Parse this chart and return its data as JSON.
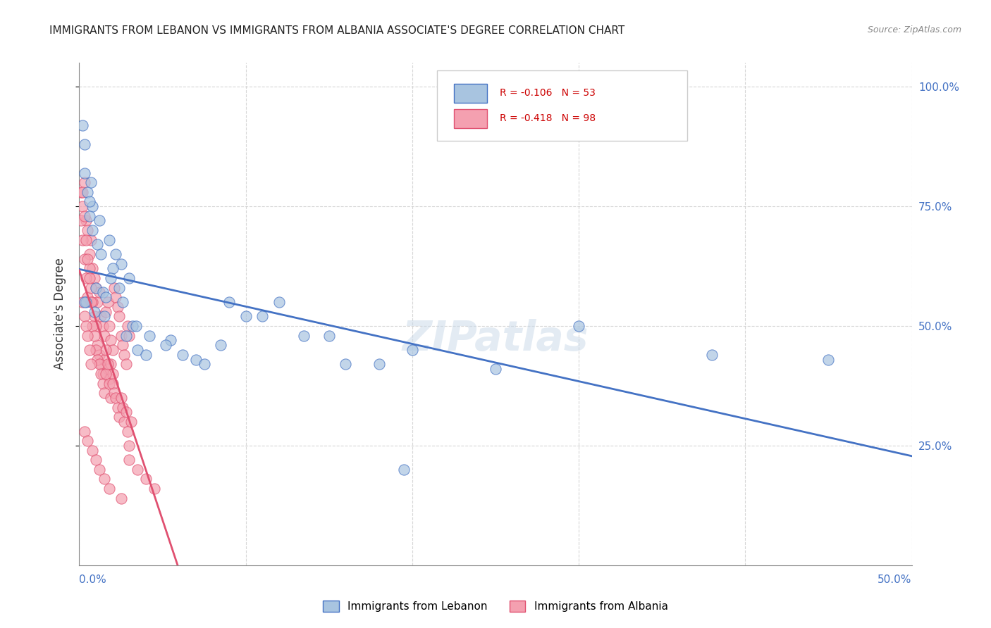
{
  "title": "IMMIGRANTS FROM LEBANON VS IMMIGRANTS FROM ALBANIA ASSOCIATE'S DEGREE CORRELATION CHART",
  "source": "Source: ZipAtlas.com",
  "ylabel": "Associate's Degree",
  "right_yticks": [
    "100.0%",
    "75.0%",
    "50.0%",
    "25.0%"
  ],
  "right_ytick_vals": [
    1.0,
    0.75,
    0.5,
    0.25
  ],
  "R_lebanon": -0.106,
  "N_lebanon": 53,
  "R_albania": -0.418,
  "N_albania": 98,
  "color_lebanon": "#a8c4e0",
  "color_albania": "#f4a0b0",
  "line_lebanon": "#4472c4",
  "line_albania": "#e05070",
  "watermark": "ZIPatlas",
  "xmin": 0.0,
  "xmax": 0.5,
  "ymin": 0.0,
  "ymax": 1.05,
  "lebanon_x": [
    0.002,
    0.005,
    0.008,
    0.003,
    0.012,
    0.018,
    0.025,
    0.006,
    0.004,
    0.01,
    0.015,
    0.022,
    0.03,
    0.007,
    0.003,
    0.009,
    0.014,
    0.02,
    0.028,
    0.035,
    0.006,
    0.011,
    0.016,
    0.024,
    0.032,
    0.04,
    0.055,
    0.07,
    0.085,
    0.1,
    0.12,
    0.15,
    0.18,
    0.2,
    0.25,
    0.3,
    0.38,
    0.45,
    0.003,
    0.008,
    0.013,
    0.019,
    0.026,
    0.034,
    0.042,
    0.052,
    0.062,
    0.075,
    0.09,
    0.11,
    0.135,
    0.16,
    0.195
  ],
  "lebanon_y": [
    0.92,
    0.78,
    0.75,
    0.82,
    0.72,
    0.68,
    0.63,
    0.76,
    0.55,
    0.58,
    0.52,
    0.65,
    0.6,
    0.8,
    0.55,
    0.53,
    0.57,
    0.62,
    0.48,
    0.45,
    0.73,
    0.67,
    0.56,
    0.58,
    0.5,
    0.44,
    0.47,
    0.43,
    0.46,
    0.52,
    0.55,
    0.48,
    0.42,
    0.45,
    0.41,
    0.5,
    0.44,
    0.43,
    0.88,
    0.7,
    0.65,
    0.6,
    0.55,
    0.5,
    0.48,
    0.46,
    0.44,
    0.42,
    0.55,
    0.52,
    0.48,
    0.42,
    0.2
  ],
  "albania_x": [
    0.001,
    0.002,
    0.003,
    0.004,
    0.005,
    0.006,
    0.007,
    0.008,
    0.009,
    0.01,
    0.011,
    0.012,
    0.013,
    0.014,
    0.015,
    0.016,
    0.017,
    0.018,
    0.019,
    0.02,
    0.021,
    0.022,
    0.023,
    0.024,
    0.025,
    0.026,
    0.027,
    0.028,
    0.029,
    0.03,
    0.001,
    0.002,
    0.003,
    0.004,
    0.005,
    0.006,
    0.007,
    0.008,
    0.009,
    0.01,
    0.011,
    0.012,
    0.013,
    0.014,
    0.015,
    0.016,
    0.017,
    0.018,
    0.019,
    0.02,
    0.002,
    0.003,
    0.004,
    0.005,
    0.006,
    0.007,
    0.008,
    0.009,
    0.01,
    0.011,
    0.012,
    0.013,
    0.014,
    0.015,
    0.016,
    0.017,
    0.018,
    0.019,
    0.02,
    0.021,
    0.022,
    0.023,
    0.024,
    0.025,
    0.026,
    0.027,
    0.028,
    0.029,
    0.03,
    0.031,
    0.002,
    0.003,
    0.004,
    0.005,
    0.006,
    0.007,
    0.03,
    0.035,
    0.04,
    0.045,
    0.003,
    0.005,
    0.008,
    0.01,
    0.012,
    0.015,
    0.018,
    0.025
  ],
  "albania_y": [
    0.78,
    0.75,
    0.8,
    0.72,
    0.7,
    0.65,
    0.68,
    0.62,
    0.6,
    0.58,
    0.55,
    0.57,
    0.52,
    0.5,
    0.48,
    0.53,
    0.55,
    0.5,
    0.47,
    0.45,
    0.58,
    0.56,
    0.54,
    0.52,
    0.48,
    0.46,
    0.44,
    0.42,
    0.5,
    0.48,
    0.72,
    0.68,
    0.64,
    0.6,
    0.56,
    0.62,
    0.58,
    0.55,
    0.52,
    0.5,
    0.46,
    0.44,
    0.42,
    0.4,
    0.43,
    0.45,
    0.41,
    0.39,
    0.42,
    0.4,
    0.78,
    0.73,
    0.68,
    0.64,
    0.6,
    0.55,
    0.5,
    0.48,
    0.45,
    0.43,
    0.42,
    0.4,
    0.38,
    0.36,
    0.4,
    0.42,
    0.38,
    0.35,
    0.38,
    0.36,
    0.35,
    0.33,
    0.31,
    0.35,
    0.33,
    0.3,
    0.32,
    0.28,
    0.25,
    0.3,
    0.55,
    0.52,
    0.5,
    0.48,
    0.45,
    0.42,
    0.22,
    0.2,
    0.18,
    0.16,
    0.28,
    0.26,
    0.24,
    0.22,
    0.2,
    0.18,
    0.16,
    0.14
  ]
}
